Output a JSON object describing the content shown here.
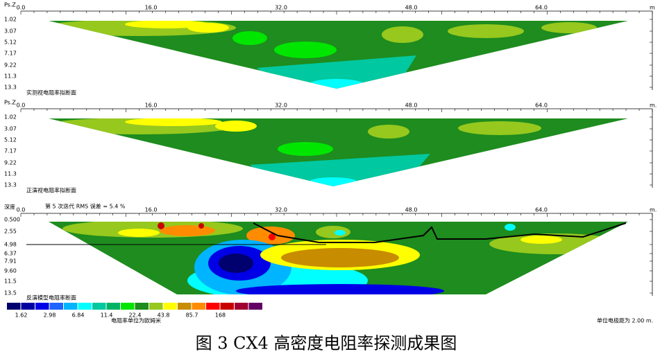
{
  "panels": [
    {
      "axis_label": "Ps.Z",
      "x_ticks": [
        "0.0",
        "16.0",
        "32.0",
        "48.0",
        "64.0"
      ],
      "x_unit": "m",
      "depth_ticks": [
        "1.02",
        "3.07",
        "5.12",
        "7.17",
        "9.22",
        "11.3",
        "13.3"
      ],
      "title": "实测视电阻率拟断面"
    },
    {
      "axis_label": "Ps.Z",
      "x_ticks": [
        "0.0",
        "16.0",
        "32.0",
        "48.0",
        "64.0"
      ],
      "x_unit": "m.",
      "depth_ticks": [
        "1.02",
        "3.07",
        "5.12",
        "7.17",
        "9.22",
        "11.3",
        "13.3"
      ],
      "title": "正演视电阻率拟断面"
    },
    {
      "axis_label": "深度",
      "iteration_note": "第 5 次迭代 RMS 误差 = 5.4 %",
      "x_ticks": [
        "0.0",
        "16.0",
        "32.0",
        "48.0",
        "64.0"
      ],
      "x_unit": "m.",
      "depth_ticks": [
        "0.500",
        "2.55",
        "4.98",
        "6.37",
        "7.91",
        "9.60",
        "11.5",
        "13.5"
      ],
      "title": "反演模型电阻率断面"
    }
  ],
  "color_scale": {
    "colors": [
      "#00006e",
      "#0000a0",
      "#0000e6",
      "#1e64ff",
      "#00b4ff",
      "#00ffff",
      "#00c8a0",
      "#00b464",
      "#00e600",
      "#1e8c1e",
      "#96c81e",
      "#ffff00",
      "#c88c00",
      "#ff8c00",
      "#ff0000",
      "#c80000",
      "#a00032",
      "#640064"
    ],
    "labels": [
      "1.62",
      "2.98",
      "6.84",
      "11.4",
      "22.4",
      "43.8",
      "85.7",
      "168"
    ],
    "unit_note": "电阻率单位为欧姆米"
  },
  "electrode_spacing_note": "单位电极距为 2.00 m.",
  "caption": "图 3  CX4 高密度电阻率探测成果图"
}
